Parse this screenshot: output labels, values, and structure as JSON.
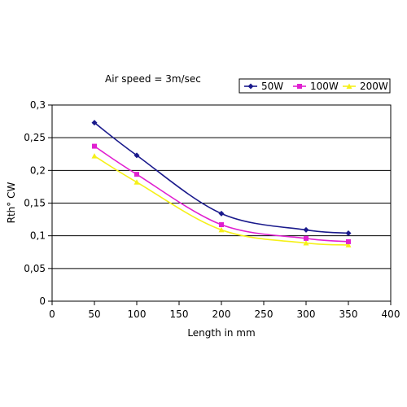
{
  "chart_data": {
    "type": "line",
    "title": "",
    "annotation": "Air speed = 3m/sec",
    "xlabel": "Length in mm",
    "ylabel": "Rth° CW",
    "xlim": [
      0,
      400
    ],
    "ylim": [
      0,
      0.3
    ],
    "x_ticks": [
      0,
      50,
      100,
      150,
      200,
      250,
      300,
      350,
      400
    ],
    "x_tick_labels": [
      "0",
      "50",
      "100",
      "150",
      "200",
      "250",
      "300",
      "350",
      "400"
    ],
    "y_ticks": [
      0,
      0.05,
      0.1,
      0.15,
      0.2,
      0.25,
      0.3
    ],
    "y_tick_labels": [
      "0",
      "0,05",
      "0,1",
      "0,15",
      "0,2",
      "0,25",
      "0,3"
    ],
    "grid": "horizontal",
    "legend_position": "top-right",
    "x": [
      50,
      100,
      200,
      300,
      350
    ],
    "series": [
      {
        "name": "50W",
        "color": "#1a1a8c",
        "marker": "diamond",
        "values": [
          0.273,
          0.223,
          0.134,
          0.109,
          0.104
        ]
      },
      {
        "name": "100W",
        "color": "#e020d0",
        "marker": "square",
        "values": [
          0.237,
          0.194,
          0.117,
          0.096,
          0.091
        ]
      },
      {
        "name": "200W",
        "color": "#f5f019",
        "marker": "triangle",
        "values": [
          0.222,
          0.182,
          0.109,
          0.089,
          0.086
        ]
      }
    ]
  }
}
